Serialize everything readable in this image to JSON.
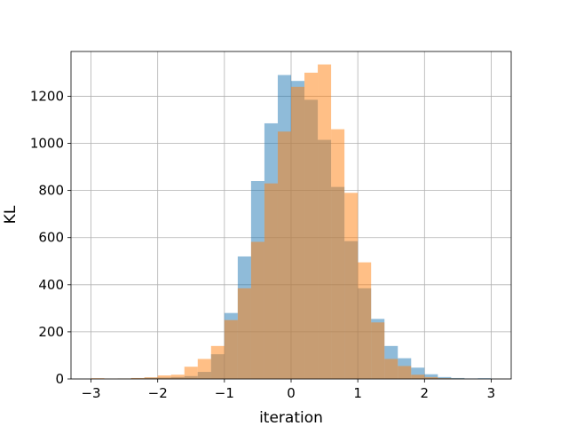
{
  "chart_data": {
    "type": "histogram",
    "xlabel": "iteration",
    "ylabel": "KL",
    "xlim": [
      -3.3,
      3.3
    ],
    "ylim": [
      0,
      1390
    ],
    "grid": true,
    "x_ticks": [
      -3,
      -2,
      -1,
      0,
      1,
      2,
      3
    ],
    "x_tick_labels": [
      "−3",
      "−2",
      "−1",
      "0",
      "1",
      "2",
      "3"
    ],
    "y_ticks": [
      0,
      200,
      400,
      600,
      800,
      1000,
      1200
    ],
    "y_tick_labels": [
      "0",
      "200",
      "400",
      "600",
      "800",
      "1000",
      "1200"
    ],
    "series": [
      {
        "color": "#1f77b4",
        "opacity": 0.5,
        "bin_width": 0.2,
        "bins": [
          {
            "x0": -2.6,
            "value": 2
          },
          {
            "x0": -2.4,
            "value": 3
          },
          {
            "x0": -2.2,
            "value": 5
          },
          {
            "x0": -2.0,
            "value": 6
          },
          {
            "x0": -1.8,
            "value": 8
          },
          {
            "x0": -1.6,
            "value": 12
          },
          {
            "x0": -1.4,
            "value": 30
          },
          {
            "x0": -1.2,
            "value": 105
          },
          {
            "x0": -1.0,
            "value": 280
          },
          {
            "x0": -0.8,
            "value": 520
          },
          {
            "x0": -0.6,
            "value": 840
          },
          {
            "x0": -0.4,
            "value": 1085
          },
          {
            "x0": -0.2,
            "value": 1290
          },
          {
            "x0": 0.0,
            "value": 1265
          },
          {
            "x0": 0.2,
            "value": 1185
          },
          {
            "x0": 0.4,
            "value": 1015
          },
          {
            "x0": 0.6,
            "value": 815
          },
          {
            "x0": 0.8,
            "value": 585
          },
          {
            "x0": 1.0,
            "value": 385
          },
          {
            "x0": 1.2,
            "value": 255
          },
          {
            "x0": 1.4,
            "value": 140
          },
          {
            "x0": 1.6,
            "value": 88
          },
          {
            "x0": 1.8,
            "value": 48
          },
          {
            "x0": 2.0,
            "value": 20
          },
          {
            "x0": 2.2,
            "value": 8
          },
          {
            "x0": 2.4,
            "value": 4
          },
          {
            "x0": 2.6,
            "value": 2
          },
          {
            "x0": 2.8,
            "value": 3
          }
        ]
      },
      {
        "color": "#ff7f0e",
        "opacity": 0.5,
        "bin_width": 0.2,
        "bins": [
          {
            "x0": -3.0,
            "value": 3
          },
          {
            "x0": -2.8,
            "value": 1
          },
          {
            "x0": -2.6,
            "value": 2
          },
          {
            "x0": -2.4,
            "value": 4
          },
          {
            "x0": -2.2,
            "value": 7
          },
          {
            "x0": -2.0,
            "value": 15
          },
          {
            "x0": -1.8,
            "value": 18
          },
          {
            "x0": -1.6,
            "value": 52
          },
          {
            "x0": -1.4,
            "value": 85
          },
          {
            "x0": -1.2,
            "value": 140
          },
          {
            "x0": -1.0,
            "value": 250
          },
          {
            "x0": -0.8,
            "value": 385
          },
          {
            "x0": -0.6,
            "value": 582
          },
          {
            "x0": -0.4,
            "value": 830
          },
          {
            "x0": -0.2,
            "value": 1050
          },
          {
            "x0": 0.0,
            "value": 1240
          },
          {
            "x0": 0.2,
            "value": 1300
          },
          {
            "x0": 0.4,
            "value": 1335
          },
          {
            "x0": 0.6,
            "value": 1060
          },
          {
            "x0": 0.8,
            "value": 790
          },
          {
            "x0": 1.0,
            "value": 495
          },
          {
            "x0": 1.2,
            "value": 240
          },
          {
            "x0": 1.4,
            "value": 85
          },
          {
            "x0": 1.6,
            "value": 55
          },
          {
            "x0": 1.8,
            "value": 18
          },
          {
            "x0": 2.0,
            "value": 8
          },
          {
            "x0": 2.2,
            "value": 3
          },
          {
            "x0": 2.4,
            "value": 2
          }
        ]
      }
    ]
  }
}
